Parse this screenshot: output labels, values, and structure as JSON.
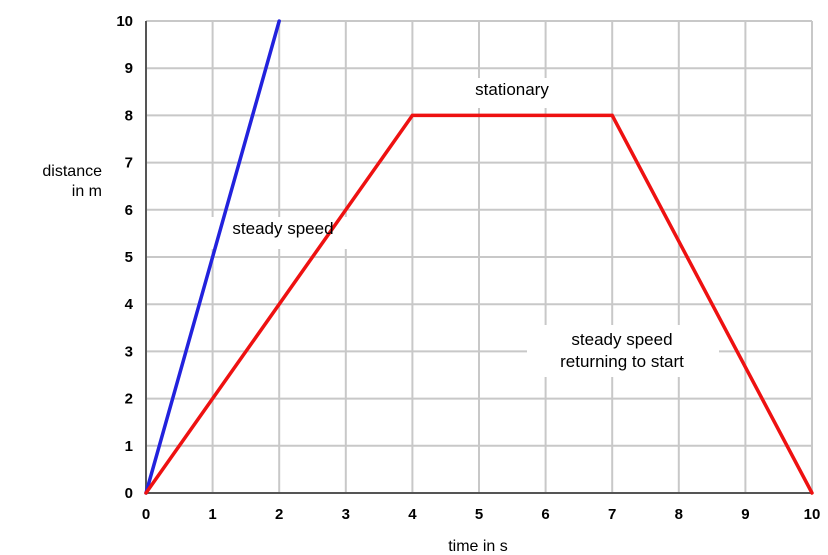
{
  "chart_data": {
    "type": "line",
    "xlabel": "time in s",
    "ylabel": [
      "distance",
      "in m"
    ],
    "xlim": [
      0,
      10
    ],
    "ylim": [
      0,
      10
    ],
    "x_ticks": [
      0,
      1,
      2,
      3,
      4,
      5,
      6,
      7,
      8,
      9,
      10
    ],
    "y_ticks": [
      0,
      1,
      2,
      3,
      4,
      5,
      6,
      7,
      8,
      9,
      10
    ],
    "grid": true,
    "series": [
      {
        "color": "#2222dd",
        "points": [
          [
            0,
            0
          ],
          [
            2,
            10
          ]
        ]
      },
      {
        "color": "#ee1111",
        "points": [
          [
            0,
            0
          ],
          [
            4,
            8
          ],
          [
            7,
            8
          ],
          [
            10,
            0
          ]
        ]
      }
    ],
    "annotations": [
      {
        "lines": [
          "steady speed"
        ]
      },
      {
        "lines": [
          "stationary"
        ]
      },
      {
        "lines": [
          "steady speed",
          "returning to start"
        ]
      }
    ]
  }
}
